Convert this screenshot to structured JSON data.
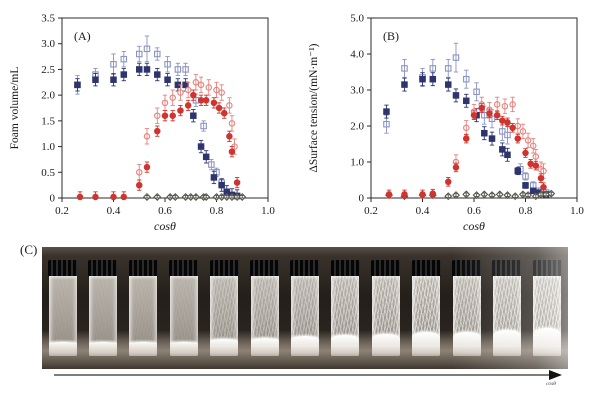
{
  "figure": {
    "panel_c_label": "(C)",
    "arrow_label": "cosθ",
    "background": "#ffffff",
    "frame_color": "#2b2b2b"
  },
  "chart_data": [
    {
      "id": "A",
      "type": "scatter",
      "panel_label": "(A)",
      "xlabel": "cosθ",
      "ylabel": "Foam volume/mL",
      "xlim": [
        0.2,
        1.0
      ],
      "ylim": [
        0,
        3.5
      ],
      "xtick_labels": [
        "0.2",
        "0.4",
        "0.6",
        "0.8",
        "1.0"
      ],
      "ytick_labels": [
        "0",
        "0.5",
        "1.0",
        "1.5",
        "2.0",
        "2.5",
        "3.0",
        "3.5"
      ],
      "grid": false,
      "legend": "none",
      "series": [
        {
          "id": "open-blue-squares",
          "marker": "square",
          "fill": "open",
          "color": "#8a93c4",
          "err": 0.18,
          "points": [
            [
              0.26,
              2.2
            ],
            [
              0.33,
              2.4,
              0.12
            ],
            [
              0.4,
              2.6,
              0.2
            ],
            [
              0.44,
              2.7,
              0.15
            ],
            [
              0.5,
              2.8,
              0.15
            ],
            [
              0.53,
              2.9,
              0.25
            ],
            [
              0.57,
              2.8,
              0.12
            ],
            [
              0.61,
              2.6,
              0.15
            ],
            [
              0.65,
              2.5,
              0.12
            ],
            [
              0.68,
              2.5,
              0.12
            ],
            [
              0.72,
              1.9,
              0.12
            ],
            [
              0.75,
              1.4,
              0.1
            ],
            [
              0.78,
              0.65,
              0.1
            ],
            [
              0.8,
              0.5,
              0.08
            ],
            [
              0.82,
              0.3,
              0.08
            ],
            [
              0.84,
              0.12,
              0.05
            ],
            [
              0.86,
              0.06,
              0.04
            ],
            [
              0.88,
              0.04,
              0.03
            ]
          ]
        },
        {
          "id": "filled-navy-squares",
          "marker": "square",
          "fill": "solid",
          "color": "#2e346e",
          "err": 0.12,
          "points": [
            [
              0.26,
              2.2
            ],
            [
              0.33,
              2.3
            ],
            [
              0.4,
              2.3
            ],
            [
              0.44,
              2.4
            ],
            [
              0.5,
              2.5
            ],
            [
              0.53,
              2.5
            ],
            [
              0.57,
              2.4
            ],
            [
              0.61,
              2.3
            ],
            [
              0.65,
              2.2
            ],
            [
              0.68,
              2.2
            ],
            [
              0.71,
              1.6
            ],
            [
              0.74,
              1.0
            ],
            [
              0.76,
              0.8
            ],
            [
              0.79,
              0.4
            ],
            [
              0.82,
              0.25
            ],
            [
              0.84,
              0.12
            ],
            [
              0.86,
              0.06
            ],
            [
              0.88,
              0.04
            ]
          ]
        },
        {
          "id": "open-red-circles",
          "marker": "circle",
          "fill": "open",
          "color": "#e4837d",
          "err": 0.15,
          "points": [
            [
              0.5,
              0.5
            ],
            [
              0.53,
              1.2
            ],
            [
              0.57,
              1.6
            ],
            [
              0.6,
              1.85
            ],
            [
              0.63,
              1.95
            ],
            [
              0.66,
              2.05
            ],
            [
              0.69,
              2.1
            ],
            [
              0.72,
              2.25
            ],
            [
              0.74,
              2.2
            ],
            [
              0.77,
              2.15
            ],
            [
              0.8,
              2.1
            ],
            [
              0.82,
              2.05
            ],
            [
              0.85,
              1.8
            ],
            [
              0.86,
              1.45
            ],
            [
              0.87,
              1.0
            ]
          ]
        },
        {
          "id": "gray-diamonds",
          "marker": "diamond",
          "fill": "open",
          "color": "#55554a",
          "err": 0.03,
          "points": [
            [
              0.53,
              0.02
            ],
            [
              0.57,
              0.02
            ],
            [
              0.62,
              0.02
            ],
            [
              0.64,
              0.02
            ],
            [
              0.68,
              0.02
            ],
            [
              0.7,
              0.02
            ],
            [
              0.72,
              0.02
            ],
            [
              0.75,
              0.02
            ],
            [
              0.76,
              0.02
            ],
            [
              0.8,
              0.02
            ],
            [
              0.82,
              0.02
            ],
            [
              0.84,
              0.02
            ],
            [
              0.86,
              0.02
            ],
            [
              0.88,
              0.02
            ],
            [
              0.9,
              0.02
            ]
          ]
        },
        {
          "id": "filled-red-circles",
          "marker": "circle",
          "fill": "solid",
          "color": "#cf342e",
          "err": 0.1,
          "points": [
            [
              0.27,
              0.02
            ],
            [
              0.33,
              0.02
            ],
            [
              0.4,
              0.02
            ],
            [
              0.44,
              0.02
            ],
            [
              0.5,
              0.25
            ],
            [
              0.53,
              0.6
            ],
            [
              0.57,
              1.3
            ],
            [
              0.6,
              1.6
            ],
            [
              0.63,
              1.6
            ],
            [
              0.66,
              1.7
            ],
            [
              0.69,
              1.8
            ],
            [
              0.71,
              2.0
            ],
            [
              0.74,
              1.9
            ],
            [
              0.76,
              1.9
            ],
            [
              0.79,
              1.85
            ],
            [
              0.81,
              1.75
            ],
            [
              0.83,
              1.65
            ],
            [
              0.85,
              1.2
            ],
            [
              0.86,
              0.9
            ],
            [
              0.88,
              0.3
            ]
          ]
        }
      ]
    },
    {
      "id": "B",
      "type": "scatter",
      "panel_label": "(B)",
      "xlabel": "cosθ",
      "ylabel": "ΔSurface tension/(mN·m⁻¹)",
      "xlim": [
        0.2,
        1.0
      ],
      "ylim": [
        0,
        5.0
      ],
      "xtick_labels": [
        "0.2",
        "0.4",
        "0.6",
        "0.8",
        "1.0"
      ],
      "ytick_labels": [
        "0",
        "1.0",
        "2.0",
        "3.0",
        "4.0",
        "5.0"
      ],
      "grid": false,
      "legend": "none",
      "series": [
        {
          "id": "open-blue-squares",
          "marker": "square",
          "fill": "open",
          "color": "#8a93c4",
          "err": 0.25,
          "points": [
            [
              0.26,
              2.05
            ],
            [
              0.33,
              3.6
            ],
            [
              0.4,
              3.35
            ],
            [
              0.44,
              3.6
            ],
            [
              0.5,
              3.6
            ],
            [
              0.53,
              3.9,
              0.4
            ],
            [
              0.57,
              3.3
            ],
            [
              0.61,
              2.95
            ],
            [
              0.64,
              2.3
            ],
            [
              0.67,
              2.2
            ],
            [
              0.71,
              1.85
            ],
            [
              0.73,
              1.75
            ],
            [
              0.78,
              0.8,
              0.15
            ],
            [
              0.8,
              0.6,
              0.1
            ],
            [
              0.83,
              0.35,
              0.1
            ],
            [
              0.85,
              0.2,
              0.08
            ],
            [
              0.88,
              0.15,
              0.08
            ]
          ]
        },
        {
          "id": "filled-navy-squares",
          "marker": "square",
          "fill": "solid",
          "color": "#2e346e",
          "err": 0.18,
          "points": [
            [
              0.26,
              2.4
            ],
            [
              0.33,
              3.15
            ],
            [
              0.4,
              3.3
            ],
            [
              0.44,
              3.3
            ],
            [
              0.5,
              3.15
            ],
            [
              0.53,
              2.85
            ],
            [
              0.57,
              2.7
            ],
            [
              0.61,
              2.3
            ],
            [
              0.64,
              1.8
            ],
            [
              0.67,
              1.65
            ],
            [
              0.71,
              1.35
            ],
            [
              0.73,
              1.2
            ],
            [
              0.77,
              0.75,
              0.1
            ],
            [
              0.8,
              0.35,
              0.08
            ],
            [
              0.83,
              0.2,
              0.06
            ],
            [
              0.85,
              0.15,
              0.06
            ],
            [
              0.88,
              0.1,
              0.05
            ]
          ]
        },
        {
          "id": "open-red-circles",
          "marker": "circle",
          "fill": "open",
          "color": "#e4837d",
          "err": 0.2,
          "points": [
            [
              0.53,
              1.0
            ],
            [
              0.57,
              1.95
            ],
            [
              0.6,
              2.4
            ],
            [
              0.63,
              2.6
            ],
            [
              0.66,
              2.45
            ],
            [
              0.69,
              2.6
            ],
            [
              0.72,
              2.55
            ],
            [
              0.75,
              2.6
            ],
            [
              0.77,
              2.0
            ],
            [
              0.79,
              1.85
            ],
            [
              0.81,
              1.6
            ],
            [
              0.83,
              1.45
            ],
            [
              0.84,
              1.15
            ],
            [
              0.86,
              0.8
            ],
            [
              0.87,
              0.75
            ]
          ]
        },
        {
          "id": "gray-diamonds",
          "marker": "diamond",
          "fill": "open",
          "color": "#55554a",
          "err": 0.04,
          "points": [
            [
              0.27,
              0.08
            ],
            [
              0.33,
              0.05
            ],
            [
              0.4,
              0.08
            ],
            [
              0.44,
              0.08
            ],
            [
              0.5,
              0.05
            ],
            [
              0.53,
              0.08
            ],
            [
              0.57,
              0.1
            ],
            [
              0.61,
              0.08
            ],
            [
              0.64,
              0.1
            ],
            [
              0.67,
              0.08
            ],
            [
              0.7,
              0.1
            ],
            [
              0.73,
              0.08
            ],
            [
              0.76,
              0.05
            ],
            [
              0.79,
              0.1
            ],
            [
              0.81,
              0.08
            ],
            [
              0.84,
              0.05
            ],
            [
              0.86,
              0.1
            ],
            [
              0.88,
              0.1
            ],
            [
              0.9,
              0.12
            ]
          ]
        },
        {
          "id": "filled-red-circles",
          "marker": "circle",
          "fill": "solid",
          "color": "#cf342e",
          "err": 0.12,
          "points": [
            [
              0.27,
              0.1
            ],
            [
              0.33,
              0.1
            ],
            [
              0.4,
              0.1
            ],
            [
              0.44,
              0.12
            ],
            [
              0.5,
              0.45
            ],
            [
              0.53,
              0.85
            ],
            [
              0.57,
              1.65
            ],
            [
              0.6,
              2.3
            ],
            [
              0.63,
              2.5
            ],
            [
              0.66,
              2.35
            ],
            [
              0.69,
              2.3
            ],
            [
              0.71,
              2.15
            ],
            [
              0.73,
              2.1
            ],
            [
              0.75,
              1.95
            ],
            [
              0.77,
              1.65
            ],
            [
              0.8,
              1.25
            ],
            [
              0.82,
              0.95
            ],
            [
              0.84,
              0.9
            ],
            [
              0.86,
              0.55
            ],
            [
              0.87,
              0.3
            ]
          ]
        }
      ]
    }
  ],
  "photo": {
    "vial_count": 13,
    "vials": [
      {
        "haze": 0.06,
        "foam": 3
      },
      {
        "haze": 0.06,
        "foam": 3
      },
      {
        "haze": 0.07,
        "foam": 3
      },
      {
        "haze": 0.08,
        "foam": 3
      },
      {
        "haze": 0.3,
        "foam": 6
      },
      {
        "haze": 0.35,
        "foam": 7
      },
      {
        "haze": 0.4,
        "foam": 9
      },
      {
        "haze": 0.5,
        "foam": 10
      },
      {
        "haze": 0.55,
        "foam": 11
      },
      {
        "haze": 0.6,
        "foam": 13
      },
      {
        "haze": 0.55,
        "foam": 13
      },
      {
        "haze": 0.6,
        "foam": 15
      },
      {
        "haze": 0.68,
        "foam": 17
      }
    ]
  }
}
